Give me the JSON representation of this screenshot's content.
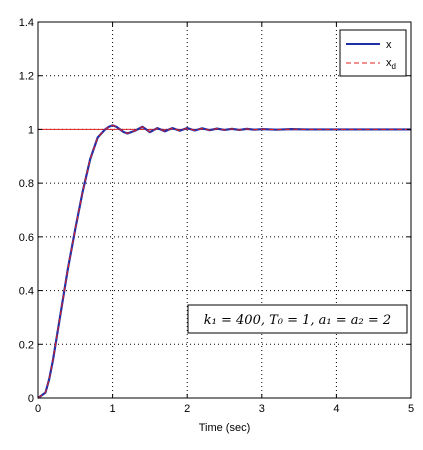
{
  "chart_data": {
    "type": "line",
    "title": "",
    "xlabel": "Time (sec)",
    "ylabel": "",
    "xlim": [
      0,
      5
    ],
    "ylim": [
      0,
      1.4
    ],
    "xticks": [
      0,
      1,
      2,
      3,
      4,
      5
    ],
    "yticks": [
      0,
      0.2,
      0.4,
      0.6,
      0.8,
      1,
      1.2,
      1.4
    ],
    "xtick_labels": [
      "0",
      "1",
      "2",
      "3",
      "4",
      "5"
    ],
    "ytick_labels": [
      "0",
      "0.2",
      "0.4",
      "0.6",
      "0.8",
      "1",
      "1.2",
      "1.4"
    ],
    "grid": true,
    "grid_style": "dotted",
    "legend_position": "top-right",
    "series": [
      {
        "name": "x",
        "color": "#1f2fa8",
        "style": "solid",
        "x": [
          0,
          0.1,
          0.15,
          0.2,
          0.3,
          0.4,
          0.5,
          0.6,
          0.7,
          0.8,
          0.9,
          0.95,
          1.0,
          1.05,
          1.1,
          1.15,
          1.2,
          1.3,
          1.4,
          1.5,
          1.6,
          1.7,
          1.8,
          1.9,
          2.0,
          2.1,
          2.2,
          2.3,
          2.4,
          2.5,
          2.6,
          2.7,
          2.8,
          2.9,
          3.0,
          3.2,
          3.4,
          3.6,
          3.8,
          4.0,
          4.5,
          5.0
        ],
        "y": [
          0,
          0.02,
          0.07,
          0.14,
          0.31,
          0.48,
          0.63,
          0.77,
          0.89,
          0.97,
          1.0,
          1.01,
          1.015,
          1.01,
          1.0,
          0.99,
          0.985,
          0.995,
          1.01,
          0.99,
          1.005,
          0.993,
          1.005,
          0.995,
          1.005,
          0.996,
          1.004,
          0.997,
          1.003,
          0.998,
          1.002,
          0.998,
          1.002,
          0.999,
          1.001,
          0.999,
          1.001,
          1.0,
          1.0,
          1.0,
          1.0,
          1.0
        ]
      },
      {
        "name": "x_d",
        "color": "#e02020",
        "style": "dashed",
        "x": [
          0,
          0.1,
          0.15,
          0.2,
          0.3,
          0.4,
          0.5,
          0.6,
          0.7,
          0.8,
          0.9,
          0.95,
          1.0,
          1.05,
          1.1,
          1.15,
          1.2,
          1.3,
          1.4,
          1.5,
          1.6,
          1.7,
          1.8,
          1.9,
          2.0,
          2.1,
          2.2,
          2.3,
          2.4,
          2.5,
          2.6,
          2.7,
          2.8,
          2.9,
          3.0,
          3.2,
          3.4,
          3.6,
          3.8,
          4.0,
          4.5,
          5.0
        ],
        "y": [
          0,
          0.02,
          0.07,
          0.14,
          0.31,
          0.48,
          0.63,
          0.77,
          0.89,
          0.97,
          1.0,
          1.01,
          1.015,
          1.01,
          1.0,
          0.99,
          0.985,
          0.995,
          1.01,
          0.99,
          1.005,
          0.993,
          1.005,
          0.995,
          1.005,
          0.996,
          1.004,
          0.997,
          1.003,
          0.998,
          1.002,
          0.998,
          1.002,
          0.999,
          1.001,
          0.999,
          1.001,
          1.0,
          1.0,
          1.0,
          1.0,
          1.0
        ]
      }
    ],
    "reference_lines": [
      {
        "y": 1.0,
        "color": "#e02020",
        "style": "solid"
      }
    ],
    "legend": {
      "entries": [
        {
          "series": "x",
          "label_main": "x",
          "label_sub": ""
        },
        {
          "series": "x_d",
          "label_main": "x",
          "label_sub": "d"
        }
      ]
    },
    "annotations": [
      {
        "text": "k₁ = 400, T₀ = 1, a₁ = a₂ = 2",
        "position": "lower-right"
      }
    ]
  }
}
